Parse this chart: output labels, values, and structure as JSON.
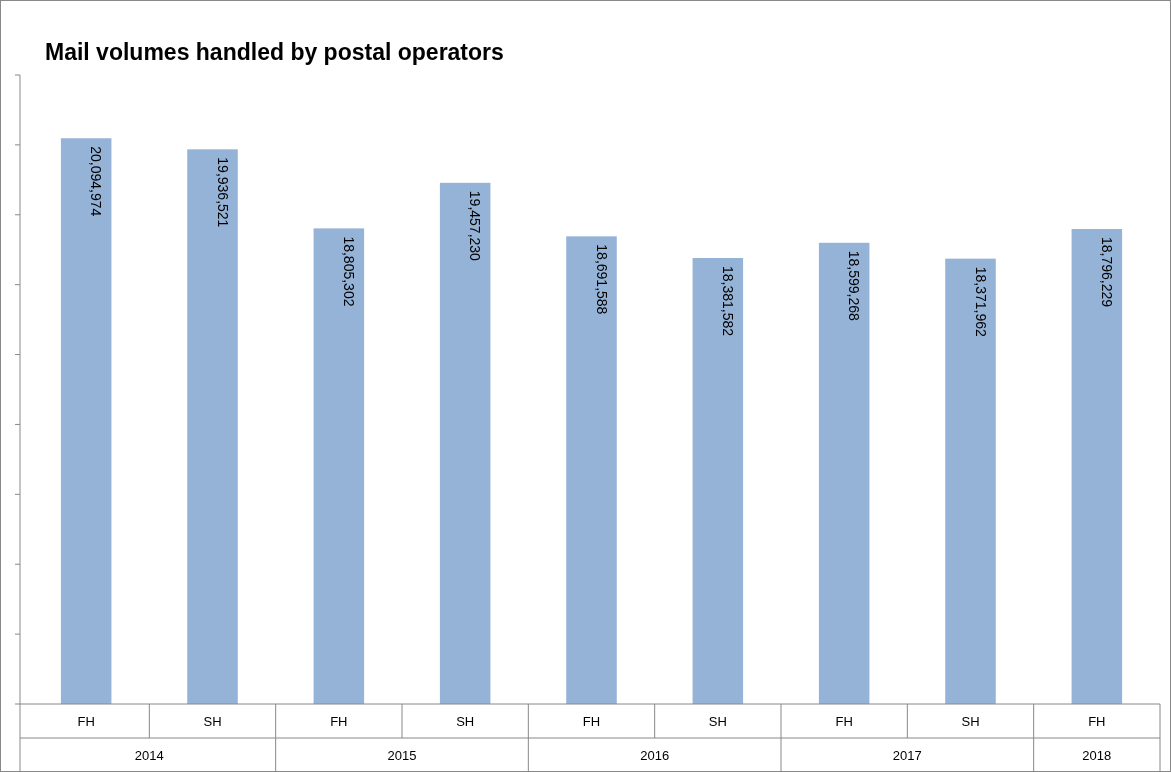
{
  "chart_data": {
    "type": "bar",
    "title": "Mail volumes handled by postal operators",
    "categories": [
      "FH",
      "SH",
      "FH",
      "SH",
      "FH",
      "SH",
      "FH",
      "SH",
      "FH"
    ],
    "values": [
      20094974,
      19936521,
      18805302,
      19457230,
      18691588,
      18381582,
      18599268,
      18371962,
      18796229
    ],
    "value_labels": [
      "20,094,974",
      "19,936,521",
      "18,805,302",
      "19,457,230",
      "18,691,588",
      "18,381,582",
      "18,599,268",
      "18,371,962",
      "18,796,229"
    ],
    "color": "#95b3d7",
    "tick_labels": "x",
    "ylim": [
      12000000,
      21000000
    ],
    "annotations": [
      "2014",
      "2015",
      "2016",
      "2017",
      "2018"
    ]
  }
}
